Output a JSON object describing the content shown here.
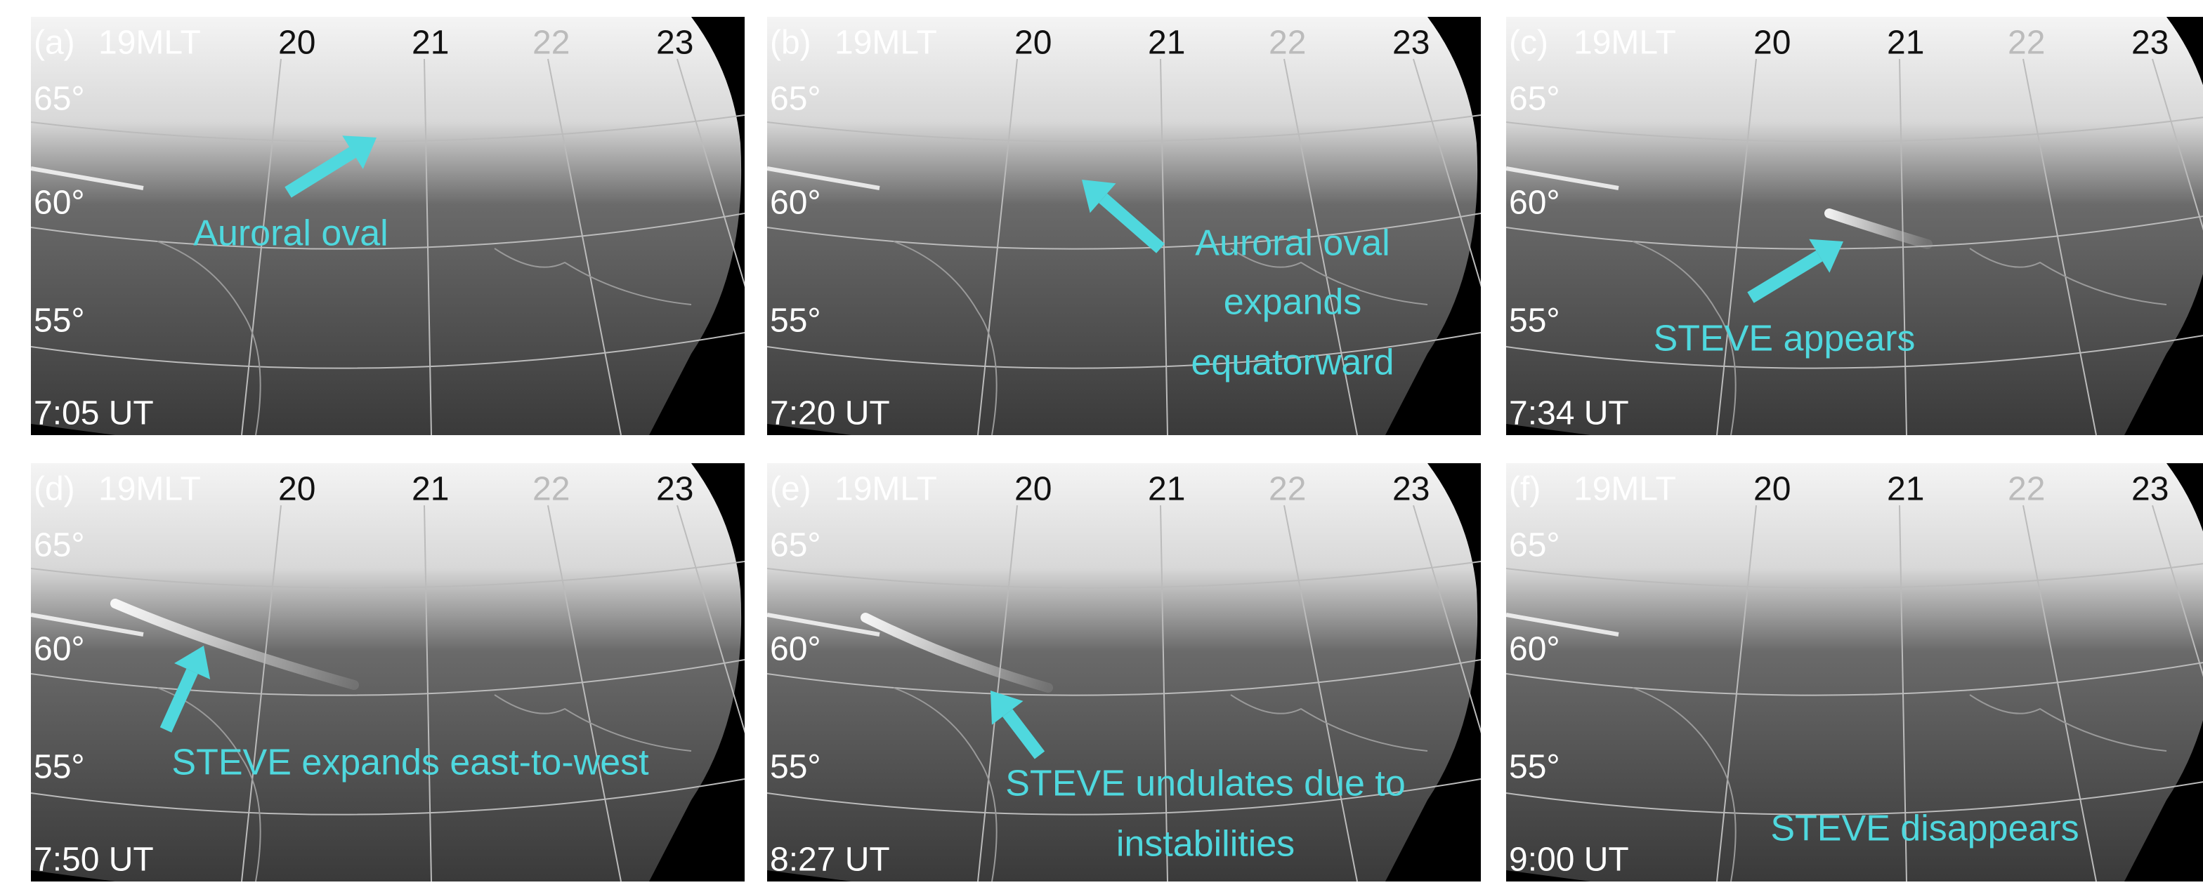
{
  "mlt_labels": [
    "19MLT",
    "20",
    "21",
    "22",
    "23"
  ],
  "lat_labels": [
    "65°",
    "60°",
    "55°"
  ],
  "panels": [
    {
      "label": "(a)",
      "time": "7:05 UT",
      "annotation": [
        "Auroral oval"
      ]
    },
    {
      "label": "(b)",
      "time": "7:20 UT",
      "annotation": [
        "Auroral oval",
        "expands",
        "equatorward"
      ]
    },
    {
      "label": "(c)",
      "time": "7:34 UT",
      "annotation": [
        "STEVE appears"
      ]
    },
    {
      "label": "(d)",
      "time": "7:50 UT",
      "annotation": [
        "STEVE expands east-to-west"
      ]
    },
    {
      "label": "(e)",
      "time": "8:27 UT",
      "annotation": [
        "STEVE undulates due to",
        "instabilities"
      ]
    },
    {
      "label": "(f)",
      "time": "9:00 UT",
      "annotation": [
        "STEVE disappears"
      ]
    }
  ]
}
